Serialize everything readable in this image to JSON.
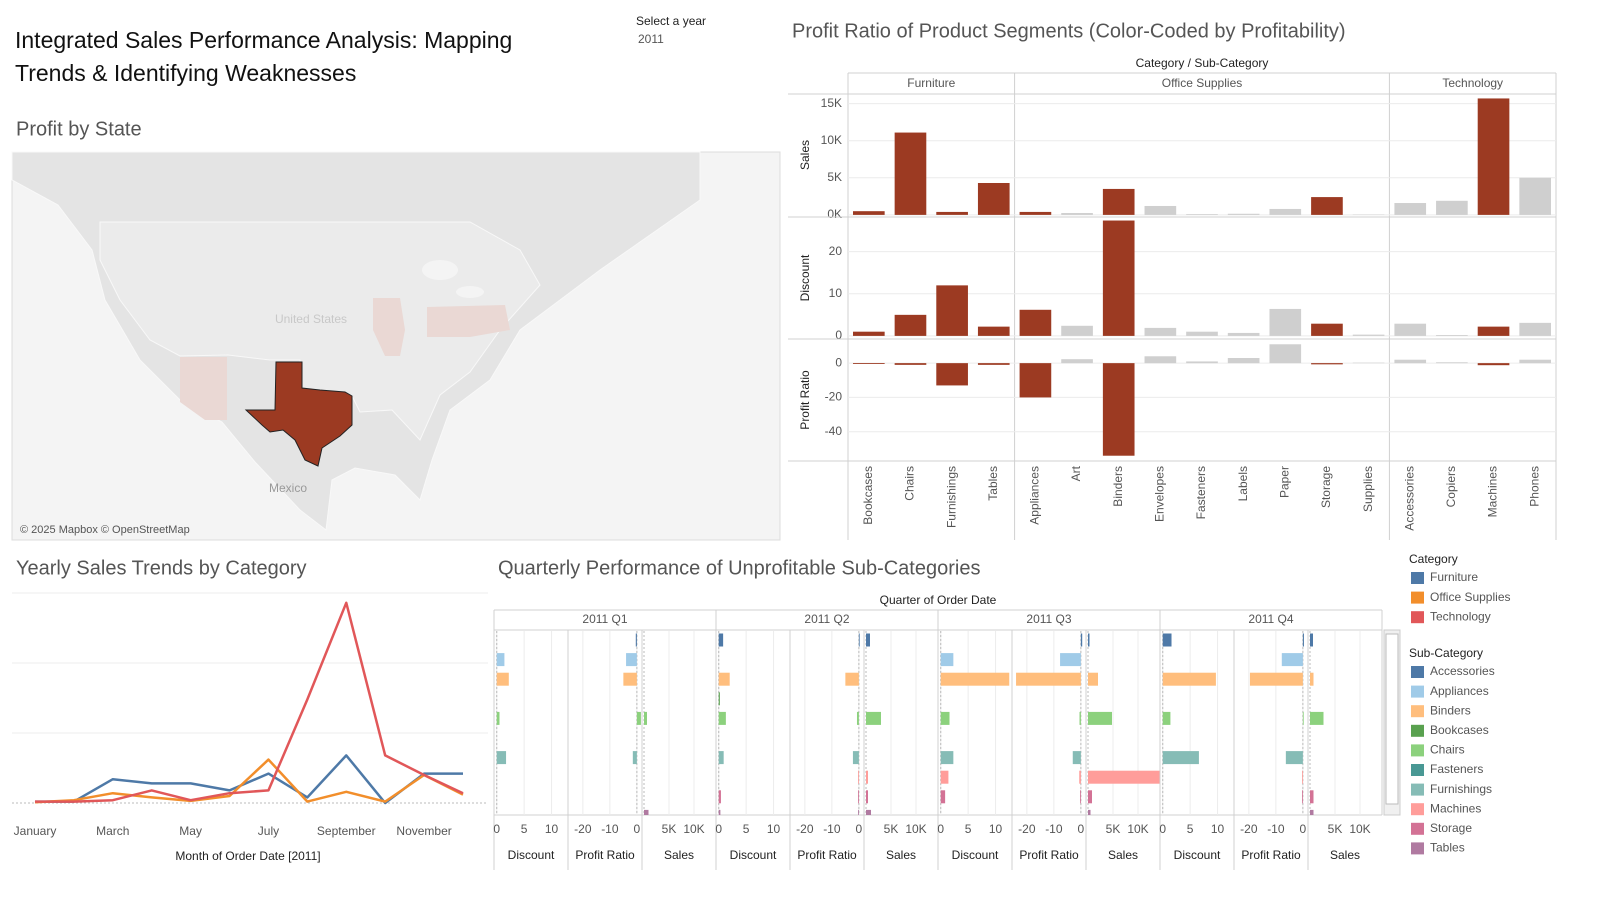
{
  "title": "Integrated Sales Performance Analysis: Mapping Trends & Identifying Weaknesses",
  "filter": {
    "label": "Select a year",
    "value": "2011"
  },
  "chart_data": [
    {
      "type": "map",
      "title": "Profit by State",
      "labels": [
        "United States",
        "Mexico"
      ],
      "attribution": "© 2025 Mapbox © OpenStreetMap"
    },
    {
      "type": "panel-bar",
      "title": "Profit Ratio of Product Segments (Color-Coded by Profitability)",
      "header": "Category / Sub-Category",
      "groups": [
        {
          "name": "Furniture",
          "categories": [
            "Bookcases",
            "Chairs",
            "Furnishings",
            "Tables"
          ]
        },
        {
          "name": "Office Supplies",
          "categories": [
            "Appliances",
            "Art",
            "Binders",
            "Envelopes",
            "Fasteners",
            "Labels",
            "Paper",
            "Storage",
            "Supplies"
          ]
        },
        {
          "name": "Technology",
          "categories": [
            "Accessories",
            "Copiers",
            "Machines",
            "Phones"
          ]
        }
      ],
      "colors": [
        "#9c3a22",
        "#9c3a22",
        "#9c3a22",
        "#9c3a22",
        "#9c3a22",
        "#cfcfcf",
        "#9c3a22",
        "#cfcfcf",
        "#cfcfcf",
        "#cfcfcf",
        "#cfcfcf",
        "#9c3a22",
        "#cfcfcf",
        "#cfcfcf",
        "#cfcfcf",
        "#9c3a22",
        "#cfcfcf"
      ],
      "measures": [
        {
          "name": "Sales",
          "ylim": [
            -150,
            16300
          ],
          "yticks": [
            {
              "value": 0,
              "label": "0K"
            },
            {
              "value": 5000,
              "label": "5K"
            },
            {
              "value": 10000,
              "label": "10K"
            },
            {
              "value": 15000,
              "label": "15K"
            }
          ],
          "values": [
            500,
            11100,
            400,
            4300,
            400,
            250,
            3500,
            1200,
            100,
            150,
            800,
            2400,
            50,
            1600,
            1900,
            15700,
            5000
          ]
        },
        {
          "name": "Discount",
          "ylim": [
            -0.5,
            28
          ],
          "yticks": [
            0,
            10,
            20
          ],
          "values": [
            1,
            5,
            12,
            2.2,
            6.2,
            2.4,
            27.4,
            1.9,
            1,
            0.7,
            6.4,
            2.9,
            0.3,
            2.9,
            0.2,
            2.2,
            3.1
          ]
        },
        {
          "name": "Profit Ratio",
          "ylim": [
            -56.5,
            13.5
          ],
          "yticks": [
            0,
            -20,
            -40
          ],
          "values": [
            -0.5,
            -1,
            -13,
            -1,
            -20,
            2.3,
            -54,
            4,
            1,
            3,
            11,
            -0.7,
            0.3,
            2,
            0.5,
            -1.2,
            2
          ]
        }
      ]
    },
    {
      "type": "line",
      "title": "Yearly Sales Trends by Category",
      "xlabel": "Month of Order Date [2011]",
      "categories": [
        "January",
        null,
        "March",
        null,
        "May",
        null,
        "July",
        null,
        "September",
        null,
        "November",
        null
      ],
      "ylim": [
        -500,
        15000
      ],
      "yticks": [
        0,
        5000,
        10000,
        15000
      ],
      "grid": true,
      "legend_title": "Category",
      "series": [
        {
          "name": "Furniture",
          "color": "#4e79a7",
          "values": [
            100,
            100,
            1700,
            1400,
            1400,
            900,
            2100,
            400,
            3400,
            0,
            2100,
            2100
          ]
        },
        {
          "name": "Office Supplies",
          "color": "#f28e2b",
          "values": [
            50,
            200,
            700,
            400,
            150,
            500,
            3100,
            100,
            800,
            100,
            2000,
            600
          ]
        },
        {
          "name": "Technology",
          "color": "#e15759",
          "values": [
            100,
            100,
            200,
            900,
            200,
            700,
            900,
            7400,
            14300,
            3400,
            2000,
            700
          ]
        }
      ]
    },
    {
      "type": "quarterly-bar",
      "title": "Quarterly Performance of Unprofitable Sub-Categories",
      "header": "Quarter of Order Date",
      "quarters": [
        "2011 Q1",
        "2011 Q2",
        "2011 Q3",
        "2011 Q4"
      ],
      "measures": [
        {
          "name": "Discount",
          "xlim": [
            -0.5,
            13
          ],
          "xticks": [
            0,
            5,
            10
          ]
        },
        {
          "name": "Profit Ratio",
          "xlim": [
            -25.5,
            1.9
          ],
          "xticks": [
            -20,
            -10,
            0
          ]
        },
        {
          "name": "Sales",
          "xlim": [
            -400,
            14400
          ],
          "xticks": [
            {
              "value": 5000,
              "label": "5K"
            },
            {
              "value": 10000,
              "label": "10K"
            }
          ]
        }
      ],
      "legend_title": "Sub-Category",
      "categories": [
        "Accessories",
        "Appliances",
        "Binders",
        "Bookcases",
        "Chairs",
        "Fasteners",
        "Furnishings",
        "Machines",
        "Storage",
        "Tables"
      ],
      "colors": [
        "#4e79a7",
        "#a0cbe8",
        "#ffbe7d",
        "#59a14f",
        "#8cd17d",
        "#499894",
        "#86bcb6",
        "#ff9d9a",
        "#d37295",
        "#b07aa1"
      ],
      "values": [
        [
          [
            0,
            1.4,
            2.2,
            0,
            0.5,
            0,
            1.7,
            0,
            0,
            0
          ],
          [
            -0.4,
            -4,
            -5,
            0,
            1.5,
            0,
            -1.5,
            0,
            0,
            0
          ],
          [
            0,
            0,
            0,
            0,
            600,
            0,
            0,
            0,
            0,
            900
          ]
        ],
        [
          [
            0.8,
            0,
            2,
            0.2,
            1.3,
            0,
            0.9,
            0,
            0.4,
            0.3
          ],
          [
            0.3,
            0,
            -5,
            0,
            -0.7,
            0,
            -2.2,
            -0.3,
            -0.3,
            -0.3
          ],
          [
            800,
            0,
            0,
            0,
            3000,
            0,
            0,
            400,
            400,
            1000
          ]
        ],
        [
          [
            0,
            2.3,
            12.5,
            0,
            1.6,
            0,
            2.3,
            1.4,
            0.8,
            0
          ],
          [
            0.5,
            -7.7,
            -24,
            0,
            -0.5,
            0,
            -3,
            -0.6,
            -0.3,
            0
          ],
          [
            300,
            0,
            2000,
            0,
            4800,
            0,
            0,
            14300,
            800,
            500
          ]
        ],
        [
          [
            1.6,
            0,
            9.7,
            0,
            1.4,
            0,
            6.6,
            0,
            0,
            0
          ],
          [
            0.4,
            -7.8,
            -19.6,
            0,
            0.3,
            0,
            -6.3,
            -0.3,
            -0.3,
            0
          ],
          [
            600,
            0,
            700,
            0,
            2700,
            0,
            0,
            0,
            700,
            700
          ]
        ]
      ]
    }
  ]
}
